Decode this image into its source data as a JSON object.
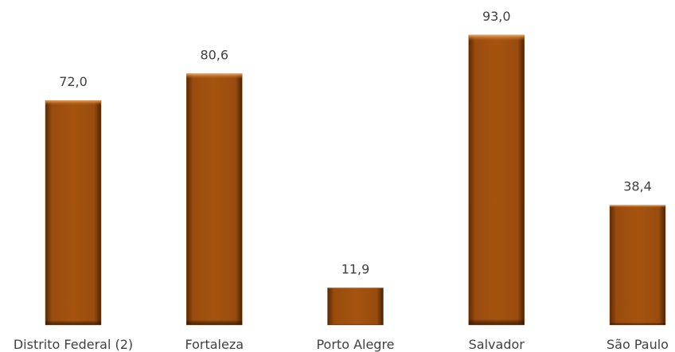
{
  "chart_data": {
    "type": "bar",
    "categories": [
      "Distrito Federal (2)",
      "Fortaleza",
      "Porto Alegre",
      "Salvador",
      "São Paulo"
    ],
    "values": [
      72.0,
      80.6,
      11.9,
      93.0,
      38.4
    ],
    "value_labels": [
      "72,0",
      "80,6",
      "11,9",
      "93,0",
      "38,4"
    ],
    "color": "#a0500f"
  }
}
